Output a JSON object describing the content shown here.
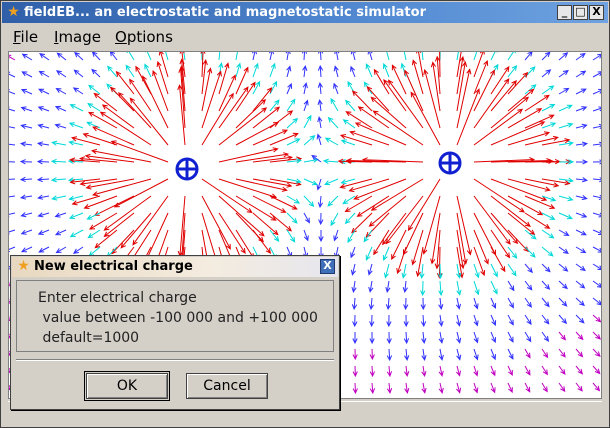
{
  "window": {
    "title": "fieldEB... an electrostatic and magnetostatic simulator",
    "app_icon": "star-icon",
    "buttons": {
      "minimize": "_",
      "maximize": "□",
      "close": "X"
    }
  },
  "menubar": {
    "items": [
      {
        "label": "File",
        "underline": "F",
        "rest": "ile"
      },
      {
        "label": "Image",
        "underline": "I",
        "rest": "mage"
      },
      {
        "label": "Options",
        "underline": "O",
        "rest": "ptions"
      }
    ]
  },
  "canvas": {
    "charges": [
      {
        "symbol": "⊕",
        "value": "positive"
      },
      {
        "symbol": "⊕",
        "value": "positive"
      }
    ],
    "colors": {
      "near": "#e00000",
      "mid": "#00d8d8",
      "far": "#3030ff",
      "farther": "#c000c0",
      "charge": "#1020d0"
    }
  },
  "dialog": {
    "title": "New electrical charge",
    "close": "X",
    "lines": [
      "Enter electrical charge",
      " value between -100 000 and +100 000",
      " default=1000"
    ],
    "ok_label": "OK",
    "cancel_label": "Cancel"
  }
}
